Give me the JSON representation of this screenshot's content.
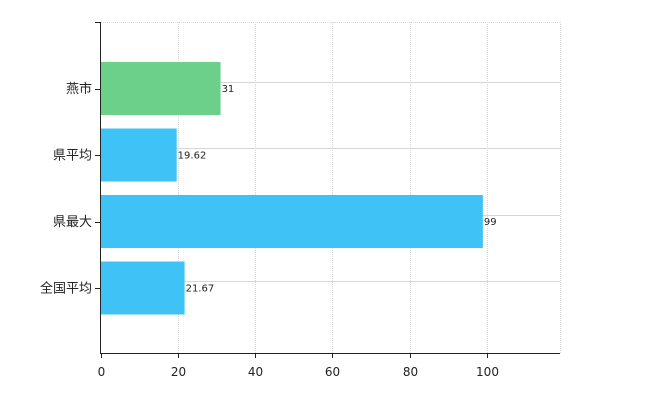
{
  "chart_data": {
    "type": "bar",
    "orientation": "horizontal",
    "categories": [
      "燕市",
      "県平均",
      "県最大",
      "全国平均"
    ],
    "values": [
      31,
      19.62,
      99,
      21.67
    ],
    "value_labels": [
      "31",
      "19.62",
      "99",
      "21.67"
    ],
    "colors": [
      "#6dd08a",
      "#3fc3f6",
      "#3fc3f6",
      "#3fc3f6"
    ],
    "xlim": [
      0,
      119
    ],
    "xticks": [
      0,
      20,
      40,
      60,
      80,
      100
    ],
    "xtick_labels": [
      "0",
      "20",
      "40",
      "60",
      "80",
      "100"
    ],
    "grid": true,
    "title": "",
    "xlabel": "",
    "ylabel": ""
  }
}
